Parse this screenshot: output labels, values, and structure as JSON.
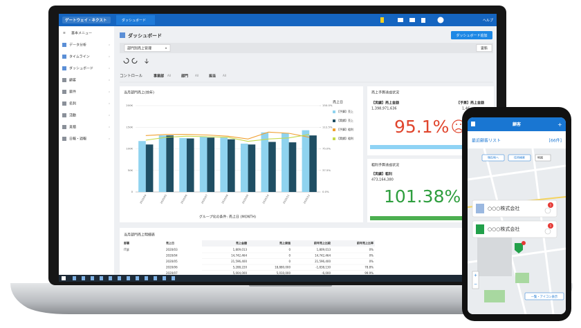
{
  "topbar": {
    "logo": "ゲートウェイ・ネクスト",
    "tab": "ダッシュボード",
    "help": "ヘルプ"
  },
  "sidebar": {
    "heading": "基本メニュー",
    "items": [
      "データ分析",
      "タイムライン",
      "ダッシュボード",
      "顧客",
      "案件",
      "名刺",
      "活動",
      "見積",
      "日報・週報"
    ]
  },
  "page": {
    "title": "ダッシュボード",
    "add_button": "ダッシュボード追加",
    "selector": "部門別売上管理",
    "refresh_button": "更新"
  },
  "controls": {
    "label": "コントロール",
    "filters": [
      {
        "name": "事業部",
        "value": "All"
      },
      {
        "name": "部門",
        "value": "All"
      },
      {
        "name": "担当",
        "value": "All"
      }
    ]
  },
  "chart_data": {
    "type": "bar",
    "title": "当月部門売上(前年)",
    "x_label": "グループ化の条件: 売上日 (MONTH)",
    "legend_title": "売上日",
    "categories": [
      "2020/04",
      "2020/05",
      "2020/06",
      "2020/07",
      "2020/08",
      "2020/09",
      "2020/10",
      "2020/11",
      "2020/12"
    ],
    "series": [
      {
        "name": "【予算】売上",
        "color": "#8fd3ef",
        "values": [
          118000,
          131000,
          125000,
          128000,
          126000,
          112000,
          138000,
          136000,
          143000
        ]
      },
      {
        "name": "【実績】売上",
        "color": "#1f4e63",
        "values": [
          110000,
          131000,
          124000,
          126000,
          122000,
          110000,
          116000,
          115000,
          131000
        ]
      },
      {
        "name": "【予算】粗利",
        "color": "#f0a030",
        "axis": "y2",
        "type": "line",
        "values": [
          98,
          100,
          100,
          99,
          97,
          92,
          104,
          102,
          95
        ]
      },
      {
        "name": "【実績】粗利",
        "color": "#c5d94a",
        "axis": "y2",
        "type": "line",
        "values": [
          90,
          95,
          97,
          96,
          95,
          88,
          92,
          94,
          100
        ]
      }
    ],
    "ylim": [
      0,
      200000
    ],
    "yticks": [
      {
        "value": 0,
        "label": "0"
      },
      {
        "value": 50000,
        "label": "50K"
      },
      {
        "value": 100000,
        "label": "100K"
      },
      {
        "value": 150000,
        "label": "150K"
      },
      {
        "value": 200000,
        "label": "200K"
      }
    ],
    "y2lim": [
      0,
      150
    ],
    "y2ticks": [
      {
        "value": 0,
        "label": "0.0%"
      },
      {
        "value": 37.5,
        "label": "37.5%"
      },
      {
        "value": 75,
        "label": "75.0%"
      },
      {
        "value": 112.5,
        "label": "112.5%"
      },
      {
        "value": 150,
        "label": "150.0%"
      }
    ],
    "grid": true
  },
  "kpi": [
    {
      "title": "売上予算達成状況",
      "actual_label": "【実績】売上金額",
      "actual_value": "1,398,971,636",
      "budget_label": "【予算】売上金額",
      "budget_value": "1,46",
      "rate": "95.1%"
    },
    {
      "title": "粗利予算達成状況",
      "actual_label": "【実績】粗利",
      "actual_value": "473,164,380",
      "rate": "101.38%"
    }
  ],
  "table": {
    "title": "当月部門売上明細表",
    "columns": [
      "部署",
      "売上日",
      "売上金額",
      "売上原価",
      "前年売上比較",
      "前年売上比率"
    ],
    "rows": [
      [
        "IT部",
        "2020/03",
        "1,809,013",
        "0",
        "1,809,013",
        "0%"
      ],
      [
        "",
        "2020/04",
        "14,742,464",
        "0",
        "14,742,464",
        "0%"
      ],
      [
        "",
        "2020/05",
        "21,596,400",
        "0",
        "21,596,400",
        "0%"
      ],
      [
        "",
        "2020/06",
        "5,288,220",
        "18,880,000",
        "-1,838,130",
        "78.8%"
      ],
      [
        "",
        "2020/07",
        "5,004,000",
        "5,010,000",
        "-6,000",
        "99.9%"
      ]
    ]
  },
  "phone": {
    "title": "顧客",
    "list_title": "最近顧客リスト",
    "count": "[66件]",
    "map_buttons": [
      "現在地へ",
      "住所検索"
    ],
    "map_type": "地図",
    "cards": [
      {
        "name": "○○○株式会社",
        "badge": "1"
      },
      {
        "name": "○○○株式会社",
        "badge": "1"
      }
    ],
    "bottom_button": "一覧・アイコン表示"
  }
}
